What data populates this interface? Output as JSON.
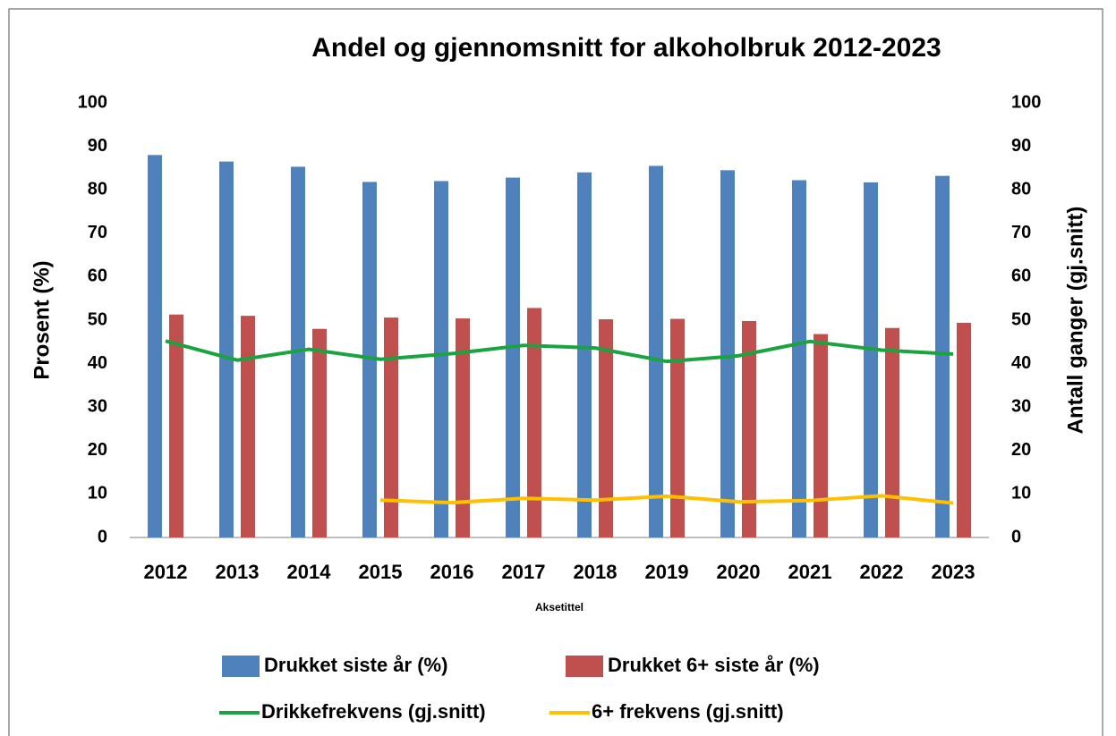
{
  "chart_data": {
    "type": "bar_line",
    "title": "Andel og gjennomsnitt for alkoholbruk 2012-2023",
    "ylabel": "Prosent (%)",
    "y2label": "Antall ganger (gj.snitt)",
    "xlabel": "Aksetittel",
    "categories": [
      "2012",
      "2013",
      "2014",
      "2015",
      "2016",
      "2017",
      "2018",
      "2019",
      "2020",
      "2021",
      "2022",
      "2023"
    ],
    "series": [
      {
        "name": "Drukket siste år (%)",
        "type": "bar",
        "color": "#4f81bd",
        "values": [
          88,
          86.5,
          85.3,
          81.8,
          82,
          82.8,
          84,
          85.5,
          84.5,
          82.2,
          81.7,
          83.2
        ]
      },
      {
        "name": "Drukket 6+ siste år (%)",
        "type": "bar",
        "color": "#c0504d",
        "values": [
          51.3,
          51,
          48,
          50.6,
          50.4,
          52.8,
          50.2,
          50.3,
          49.8,
          46.8,
          48.2,
          49.4
        ]
      },
      {
        "name": "Drikkefrekvens (gj.snitt)",
        "type": "line",
        "axis": "y2",
        "color": "#1aa340",
        "values": [
          45.2,
          40.8,
          43.3,
          41,
          42.3,
          44.2,
          43.6,
          40.5,
          41.8,
          45.1,
          43.1,
          42.2
        ]
      },
      {
        "name": "6+ frekvens (gj.snitt)",
        "type": "line",
        "axis": "y2",
        "color": "#ffc000",
        "values": [
          null,
          null,
          null,
          8.6,
          8,
          9,
          8.6,
          9.5,
          8.2,
          8.5,
          9.6,
          7.9
        ]
      }
    ],
    "ylim": [
      0,
      100
    ],
    "yticks": [
      0,
      10,
      20,
      30,
      40,
      50,
      60,
      70,
      80,
      90,
      100
    ],
    "y2lim": [
      0,
      100
    ],
    "y2ticks": [
      0,
      10,
      20,
      30,
      40,
      50,
      60,
      70,
      80,
      90,
      100
    ],
    "grid": false
  }
}
